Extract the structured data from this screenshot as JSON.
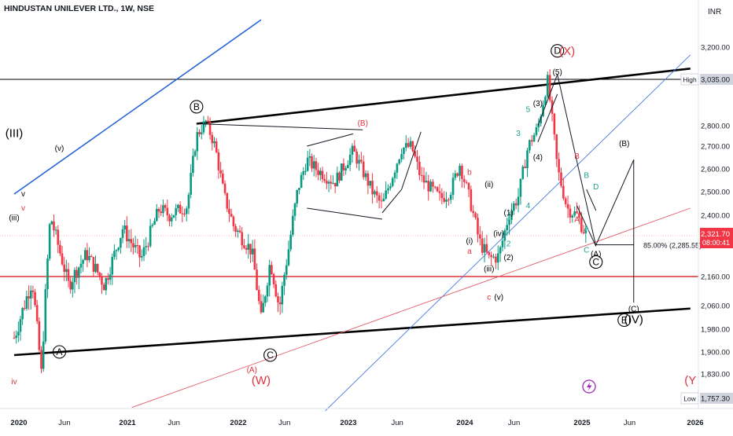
{
  "header": {
    "title": "HINDUSTAN UNILEVER LTD., 1W, NSE"
  },
  "chart_data": {
    "type": "candlestick",
    "symbol": "HINDUSTAN UNILEVER LTD.",
    "interval": "1W",
    "exchange": "NSE",
    "currency": "INR",
    "ylim": [
      1720,
      3300
    ],
    "x_ticks": [
      "2020",
      "Jun",
      "2021",
      "Jun",
      "2022",
      "Jun",
      "2023",
      "Jun",
      "2024",
      "Jun",
      "2025",
      "Jun",
      "2026"
    ],
    "y_ticks": [
      3200,
      3035,
      2800,
      2700,
      2600,
      2500,
      2400,
      2321.7,
      2160,
      2060,
      1980,
      1900,
      1830,
      1757.3
    ],
    "y_tick_labels": [
      "3,200.00",
      "3,035.00",
      "2,800.00",
      "2,700.00",
      "2,600.00",
      "2,500.00",
      "2,400.00",
      "2,321.70",
      "2,160.00",
      "2,060.00",
      "1,980.00",
      "1,900.00",
      "1,830.00",
      "1,757.30"
    ],
    "high": {
      "label": "High",
      "value": 3035.0,
      "value_label": "3,035.00"
    },
    "low": {
      "label": "Low",
      "value": 1757.3,
      "value_label": "1,757.30"
    },
    "last": {
      "value": 2321.7,
      "value_label": "2,321.70",
      "countdown": "08:00:41"
    },
    "fib": {
      "label": "85.00% (2,285.55)",
      "value": 2285.55
    },
    "horizontal_levels": [
      {
        "value": 3035,
        "color": "#000000"
      },
      {
        "value": 2160,
        "color": "#e0303a"
      }
    ],
    "price_path": [
      [
        "2019-12",
        1950
      ],
      [
        "2020-02",
        2150
      ],
      [
        "2020-03",
        1830
      ],
      [
        "2020-04",
        2400
      ],
      [
        "2020-06",
        2130
      ],
      [
        "2020-08",
        2250
      ],
      [
        "2020-10",
        2130
      ],
      [
        "2020-12",
        2350
      ],
      [
        "2021-02",
        2230
      ],
      [
        "2021-04",
        2430
      ],
      [
        "2021-05",
        2400
      ],
      [
        "2021-07",
        2440
      ],
      [
        "2021-08",
        2750
      ],
      [
        "2021-09",
        2820
      ],
      [
        "2021-10",
        2700
      ],
      [
        "2021-11",
        2480
      ],
      [
        "2021-12",
        2360
      ],
      [
        "2022-02",
        2260
      ],
      [
        "2022-03",
        2010
      ],
      [
        "2022-04",
        2220
      ],
      [
        "2022-05",
        2050
      ],
      [
        "2022-06",
        2270
      ],
      [
        "2022-07",
        2510
      ],
      [
        "2022-08",
        2640
      ],
      [
        "2022-09",
        2600
      ],
      [
        "2022-11",
        2540
      ],
      [
        "2023-01",
        2680
      ],
      [
        "2023-03",
        2500
      ],
      [
        "2023-04",
        2440
      ],
      [
        "2023-06",
        2690
      ],
      [
        "2023-07",
        2700
      ],
      [
        "2023-08",
        2560
      ],
      [
        "2023-10",
        2470
      ],
      [
        "2023-11",
        2500
      ],
      [
        "2023-12",
        2620
      ],
      [
        "2024-01",
        2470
      ],
      [
        "2024-02",
        2300
      ],
      [
        "2024-03",
        2230
      ],
      [
        "2024-04",
        2240
      ],
      [
        "2024-05",
        2400
      ],
      [
        "2024-06",
        2480
      ],
      [
        "2024-07",
        2700
      ],
      [
        "2024-08",
        2790
      ],
      [
        "2024-09",
        3030
      ],
      [
        "2024-10",
        2600
      ],
      [
        "2024-11",
        2430
      ],
      [
        "2024-12",
        2400
      ],
      [
        "2025-01",
        2321.7
      ]
    ],
    "trendlines": [
      {
        "color": "#000000",
        "points": [
          [
            "2019-12",
            1890
          ],
          [
            "2025-12",
            2050
          ]
        ]
      },
      {
        "color": "#000000",
        "points": [
          [
            "2021-08",
            2810
          ],
          [
            "2025-12",
            3090
          ]
        ]
      },
      {
        "color": "#1f5fd6",
        "points": [
          [
            "2019-12",
            2490
          ],
          [
            "2022-03",
            3340
          ]
        ]
      },
      {
        "color": "#4a78e0",
        "points": [
          [
            "2022-10",
            1720
          ],
          [
            "2025-12",
            3160
          ]
        ]
      },
      {
        "color": "#e05a67",
        "points": [
          [
            "2021-01",
            1730
          ],
          [
            "2025-12",
            2430
          ]
        ]
      }
    ],
    "wave_labels": [
      {
        "text": "(III)",
        "date": "2019-12",
        "price": 2745,
        "color": "#000000"
      },
      {
        "text": "(v)",
        "date": "2020-05",
        "price": 2680,
        "color": "#000000"
      },
      {
        "text": "v",
        "date": "2020-01",
        "price": 2480,
        "color": "#000000"
      },
      {
        "text": "v",
        "date": "2020-01",
        "price": 2420,
        "color": "#e0303a"
      },
      {
        "text": "(iii)",
        "date": "2019-12",
        "price": 2380,
        "color": "#000000"
      },
      {
        "text": "iv",
        "date": "2019-12",
        "price": 1800,
        "color": "#e0303a"
      },
      {
        "text": "A",
        "date": "2020-05",
        "price": 1890,
        "color": "#000000",
        "circled": true
      },
      {
        "text": "B",
        "date": "2021-08",
        "price": 2880,
        "color": "#000000",
        "circled": true
      },
      {
        "text": "(B)",
        "date": "2023-02",
        "price": 2800,
        "color": "#e0303a"
      },
      {
        "text": "C",
        "date": "2022-04",
        "price": 1880,
        "color": "#000000",
        "circled": true
      },
      {
        "text": "(A)",
        "date": "2022-02",
        "price": 1835,
        "color": "#e0303a"
      },
      {
        "text": "(W)",
        "date": "2022-03",
        "price": 1800,
        "color": "#e0303a"
      },
      {
        "text": "b",
        "date": "2024-01",
        "price": 2575,
        "color": "#e0303a"
      },
      {
        "text": "(ii)",
        "date": "2024-03",
        "price": 2520,
        "color": "#000000"
      },
      {
        "text": "a",
        "date": "2024-01",
        "price": 2250,
        "color": "#e0303a"
      },
      {
        "text": "(i)",
        "date": "2024-01",
        "price": 2290,
        "color": "#000000"
      },
      {
        "text": "(iv)",
        "date": "2024-04",
        "price": 2320,
        "color": "#000000"
      },
      {
        "text": "(iii)",
        "date": "2024-03",
        "price": 2180,
        "color": "#000000"
      },
      {
        "text": "(v)",
        "date": "2024-04",
        "price": 2080,
        "color": "#000000"
      },
      {
        "text": "c",
        "date": "2024-03",
        "price": 2080,
        "color": "#e0303a"
      },
      {
        "text": "(1)",
        "date": "2024-05",
        "price": 2400,
        "color": "#000000"
      },
      {
        "text": "(2)",
        "date": "2024-05",
        "price": 2225,
        "color": "#000000"
      },
      {
        "text": "(3)",
        "date": "2024-08",
        "price": 2900,
        "color": "#000000"
      },
      {
        "text": "(4)",
        "date": "2024-08",
        "price": 2640,
        "color": "#000000"
      },
      {
        "text": "(5)",
        "date": "2024-10",
        "price": 3060,
        "color": "#000000"
      },
      {
        "text": "1",
        "date": "2024-05",
        "price": 2380,
        "color": "#1aa58f"
      },
      {
        "text": "2",
        "date": "2024-05",
        "price": 2280,
        "color": "#1aa58f"
      },
      {
        "text": "3",
        "date": "2024-06",
        "price": 2750,
        "color": "#1aa58f"
      },
      {
        "text": "4",
        "date": "2024-07",
        "price": 2430,
        "color": "#1aa58f"
      },
      {
        "text": "5",
        "date": "2024-07",
        "price": 2870,
        "color": "#1aa58f"
      },
      {
        "text": "D",
        "date": "2024-10",
        "price": 3165,
        "color": "#000000",
        "circled": true
      },
      {
        "text": "(X)",
        "date": "2024-11",
        "price": 3160,
        "color": "#e0303a"
      },
      {
        "text": "B",
        "date": "2024-12",
        "price": 2645,
        "color": "#e0303a"
      },
      {
        "text": "A",
        "date": "2024-12",
        "price": 2375,
        "color": "#e0303a"
      },
      {
        "text": "A",
        "date": "2025-01",
        "price": 2340,
        "color": "#1aa58f"
      },
      {
        "text": "B",
        "date": "2025-01",
        "price": 2560,
        "color": "#1aa58f"
      },
      {
        "text": "C",
        "date": "2025-01",
        "price": 2255,
        "color": "#1aa58f"
      },
      {
        "text": "D",
        "date": "2025-02",
        "price": 2510,
        "color": "#1aa58f"
      },
      {
        "text": "(A)",
        "date": "2025-02",
        "price": 2240,
        "color": "#000000"
      },
      {
        "text": "C",
        "date": "2025-02",
        "price": 2205,
        "color": "#000000",
        "circled": true
      },
      {
        "text": "(B)",
        "date": "2025-05",
        "price": 2700,
        "color": "#000000"
      },
      {
        "text": "(C)",
        "date": "2025-06",
        "price": 2040,
        "color": "#000000"
      },
      {
        "text": "E",
        "date": "2025-05",
        "price": 2000,
        "color": "#000000",
        "circled": true
      },
      {
        "text": "(IV)",
        "date": "2025-06",
        "price": 2000,
        "color": "#000000"
      },
      {
        "text": "(Y",
        "date": "2025-12",
        "price": 1800,
        "color": "#e0303a"
      }
    ]
  },
  "colors": {
    "up": "#089981",
    "down": "#f23645",
    "last_price_bg": "#f23645",
    "fib_line": "#000000",
    "icon": "#9c27b0"
  },
  "icons": {
    "currency_label": "INR",
    "event_icon": "lightning-icon"
  }
}
